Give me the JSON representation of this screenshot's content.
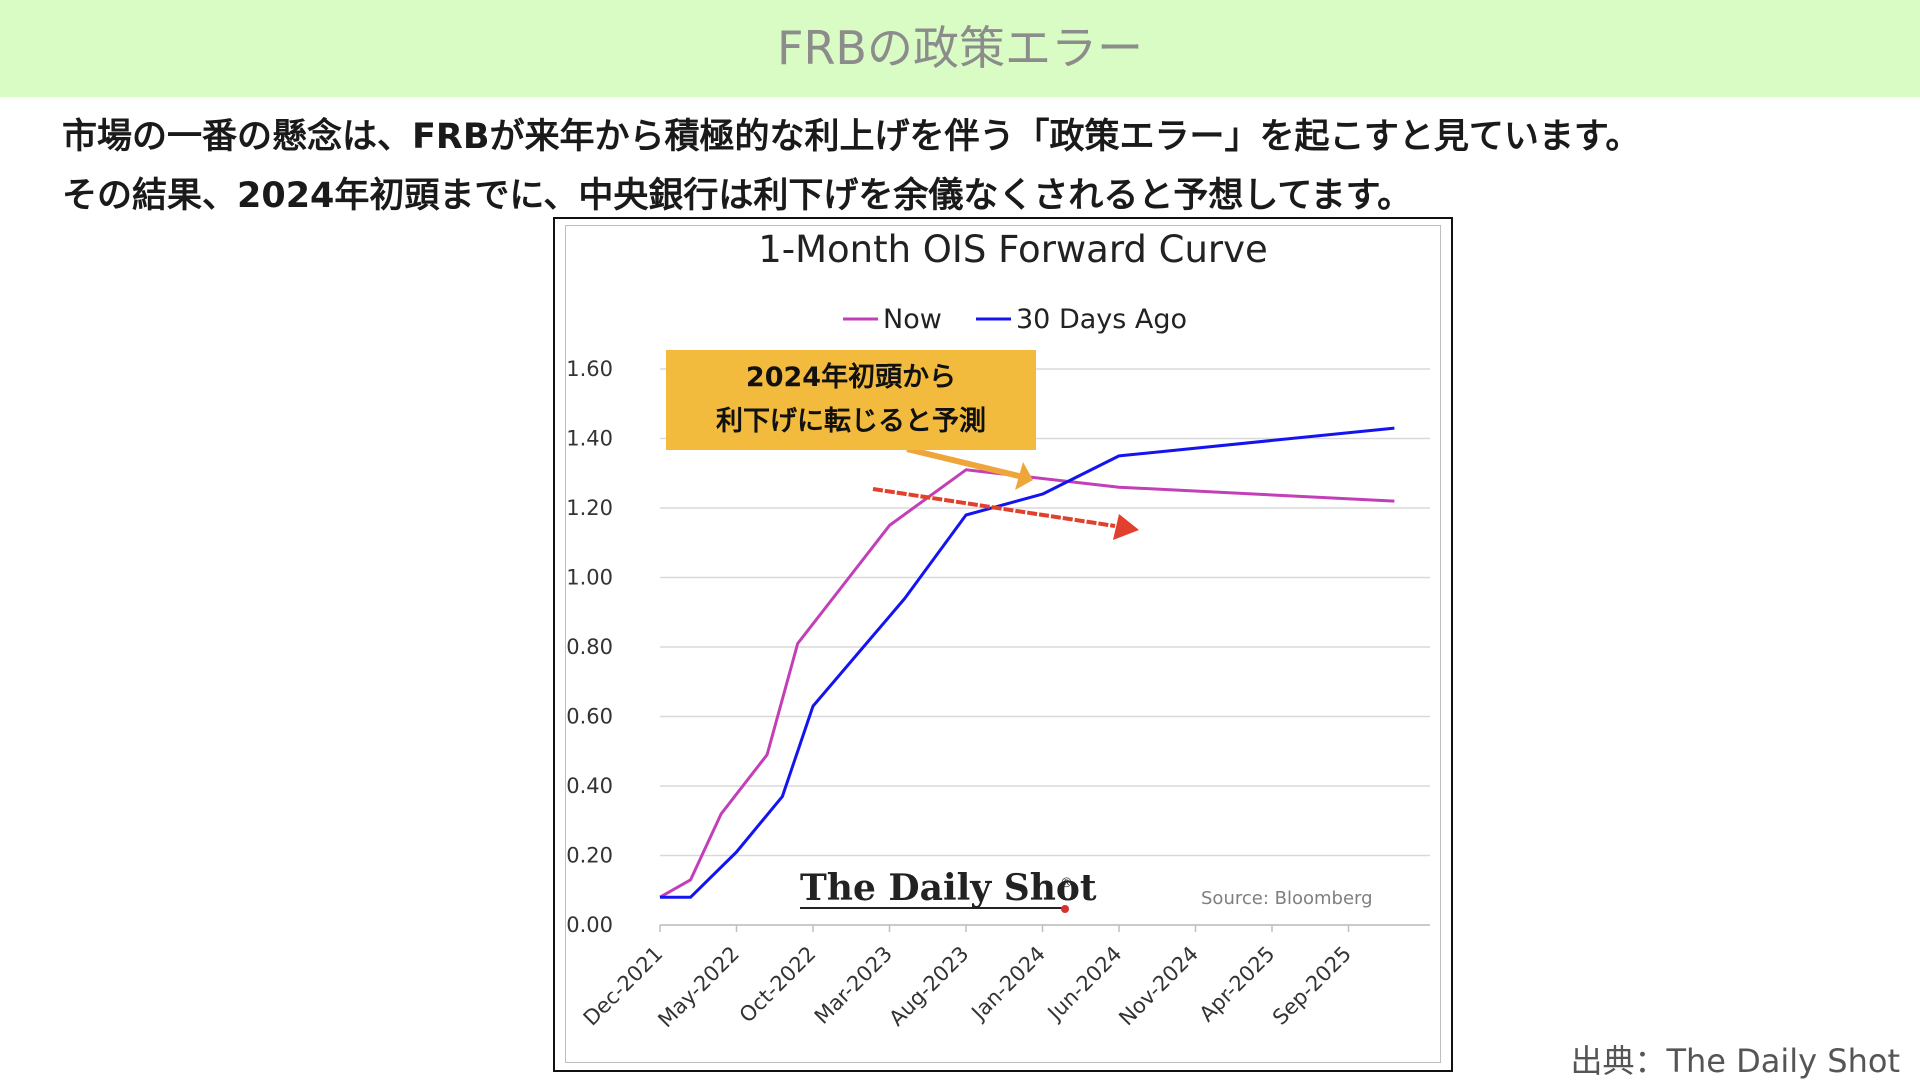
{
  "header": {
    "title": "FRBの政策エラー"
  },
  "lead": {
    "line1": "市場の一番の懸念は、FRBが来年から積極的な利上げを伴う「政策エラー」を起こすと見ています。",
    "line2": "その結果、2024年初頭までに、中央銀行は利下げを余儀なくされると予想してます。"
  },
  "callout": {
    "line1": "2024年初頭から",
    "line2": "利下げに転じると予測"
  },
  "footer": {
    "source": "出典：The Daily Shot"
  },
  "watermark": {
    "brand": "The Daily Shot",
    "registered": "®",
    "source": "Source: Bloomberg"
  },
  "colors": {
    "now": "#c23fb8",
    "ago": "#1414f0",
    "callout": "#f2bb3e",
    "arrow_callout": "#eea53a",
    "arrow_trend": "#e0402c"
  },
  "chart_data": {
    "type": "line",
    "title": "1-Month OIS Forward Curve",
    "xlabel": "",
    "ylabel": "",
    "ylim": [
      0,
      1.6
    ],
    "yticks": [
      "0.00",
      "0.20",
      "0.40",
      "0.60",
      "0.80",
      "1.00",
      "1.20",
      "1.40",
      "1.60"
    ],
    "xticks": [
      "Dec-2021",
      "May-2022",
      "Oct-2022",
      "Mar-2023",
      "Aug-2023",
      "Jan-2024",
      "Jun-2024",
      "Nov-2024",
      "Apr-2025",
      "Sep-2025"
    ],
    "grid": true,
    "legend": "top-center",
    "series": [
      {
        "name": "Now",
        "color": "#c23fb8",
        "points": [
          [
            "Dec-2021",
            0.08
          ],
          [
            "Feb-2022",
            0.13
          ],
          [
            "Apr-2022",
            0.32
          ],
          [
            "Jul-2022",
            0.49
          ],
          [
            "Sep-2022",
            0.81
          ],
          [
            "Dec-2022",
            0.98
          ],
          [
            "Mar-2023",
            1.15
          ],
          [
            "Aug-2023",
            1.31
          ],
          [
            "Jun-2024",
            1.26
          ],
          [
            "Dec-2025",
            1.22
          ]
        ]
      },
      {
        "name": "30 Days Ago",
        "color": "#1414f0",
        "points": [
          [
            "Dec-2021",
            0.08
          ],
          [
            "Feb-2022",
            0.08
          ],
          [
            "May-2022",
            0.21
          ],
          [
            "Aug-2022",
            0.37
          ],
          [
            "Oct-2022",
            0.63
          ],
          [
            "Apr-2023",
            0.94
          ],
          [
            "Aug-2023",
            1.18
          ],
          [
            "Jan-2024",
            1.24
          ],
          [
            "Jun-2024",
            1.35
          ],
          [
            "Dec-2025",
            1.43
          ]
        ]
      }
    ],
    "annotations": [
      "Forecast: rate cuts from early 2024"
    ]
  }
}
